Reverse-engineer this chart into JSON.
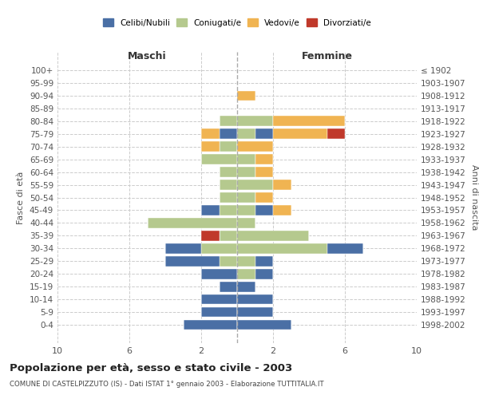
{
  "age_groups": [
    "0-4",
    "5-9",
    "10-14",
    "15-19",
    "20-24",
    "25-29",
    "30-34",
    "35-39",
    "40-44",
    "45-49",
    "50-54",
    "55-59",
    "60-64",
    "65-69",
    "70-74",
    "75-79",
    "80-84",
    "85-89",
    "90-94",
    "95-99",
    "100+"
  ],
  "birth_years": [
    "1998-2002",
    "1993-1997",
    "1988-1992",
    "1983-1987",
    "1978-1982",
    "1973-1977",
    "1968-1972",
    "1963-1967",
    "1958-1962",
    "1953-1957",
    "1948-1952",
    "1943-1947",
    "1938-1942",
    "1933-1937",
    "1928-1932",
    "1923-1927",
    "1918-1922",
    "1913-1917",
    "1908-1912",
    "1903-1907",
    "≤ 1902"
  ],
  "maschi": {
    "celibi": [
      3,
      2,
      2,
      1,
      2,
      3,
      2,
      0,
      0,
      1,
      0,
      0,
      0,
      0,
      0,
      1,
      0,
      0,
      0,
      0,
      0
    ],
    "coniugati": [
      0,
      0,
      0,
      0,
      0,
      1,
      2,
      1,
      5,
      1,
      1,
      1,
      1,
      2,
      1,
      0,
      1,
      0,
      0,
      0,
      0
    ],
    "vedovi": [
      0,
      0,
      0,
      0,
      0,
      0,
      0,
      0,
      0,
      0,
      0,
      0,
      0,
      0,
      1,
      1,
      0,
      0,
      0,
      0,
      0
    ],
    "divorziati": [
      0,
      0,
      0,
      0,
      0,
      0,
      0,
      1,
      0,
      0,
      0,
      0,
      0,
      0,
      0,
      0,
      0,
      0,
      0,
      0,
      0
    ]
  },
  "femmine": {
    "nubili": [
      3,
      2,
      2,
      1,
      1,
      1,
      2,
      0,
      0,
      1,
      0,
      0,
      0,
      0,
      0,
      1,
      0,
      0,
      0,
      0,
      0
    ],
    "coniugate": [
      0,
      0,
      0,
      0,
      1,
      1,
      5,
      4,
      1,
      1,
      1,
      2,
      1,
      1,
      0,
      1,
      2,
      0,
      0,
      0,
      0
    ],
    "vedove": [
      0,
      0,
      0,
      0,
      0,
      0,
      0,
      0,
      0,
      1,
      1,
      1,
      1,
      1,
      2,
      3,
      4,
      0,
      1,
      0,
      0
    ],
    "divorziate": [
      0,
      0,
      0,
      0,
      0,
      0,
      0,
      0,
      0,
      0,
      0,
      0,
      0,
      0,
      0,
      1,
      0,
      0,
      0,
      0,
      0
    ]
  },
  "colors": {
    "celibi_nubili": "#4a6fa5",
    "coniugati": "#b5c98e",
    "vedovi": "#f0b452",
    "divorziati": "#c0392b"
  },
  "title": "Popolazione per età, sesso e stato civile - 2003",
  "subtitle": "COMUNE DI CASTELPIZZUTO (IS) - Dati ISTAT 1° gennaio 2003 - Elaborazione TUTTITALIA.IT",
  "xlabel_left": "Maschi",
  "xlabel_right": "Femmine",
  "ylabel_left": "Fasce di età",
  "ylabel_right": "Anni di nascita",
  "xlim": 10,
  "legend_labels": [
    "Celibi/Nubili",
    "Coniugati/e",
    "Vedovi/e",
    "Divorziati/e"
  ]
}
